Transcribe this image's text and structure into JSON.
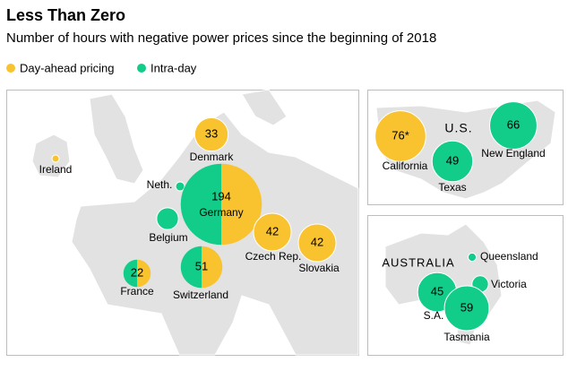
{
  "title": "Less Than Zero",
  "subtitle": "Number of hours with negative power prices since the beginning of 2018",
  "legend": [
    {
      "name": "Day-ahead pricing",
      "color": "#f9c32f"
    },
    {
      "name": "Intra-day",
      "color": "#12cc8a"
    }
  ],
  "region_labels": [
    "U.S.",
    "AUSTRALIA"
  ],
  "bubbles": [
    {
      "label": "Ireland",
      "value": 1.5,
      "colors": [
        "#f9c32f"
      ]
    },
    {
      "label": "Denmark",
      "value": 33,
      "colors": [
        "#f9c32f"
      ]
    },
    {
      "label": "Neth.",
      "value": 2.4,
      "colors": [
        "#12cc8a"
      ]
    },
    {
      "label": "Germany",
      "value": 194,
      "colors": [
        "#12cc8a",
        "#f9c32f"
      ]
    },
    {
      "label": "Belgium",
      "value": 14,
      "colors": [
        "#12cc8a"
      ]
    },
    {
      "label": "Czech Rep.",
      "value": 42,
      "colors": [
        "#f9c32f"
      ]
    },
    {
      "label": "Slovakia",
      "value": 42,
      "colors": [
        "#f9c32f"
      ]
    },
    {
      "label": "France",
      "value": 22,
      "colors": [
        "#12cc8a",
        "#f9c32f"
      ]
    },
    {
      "label": "Switzerland",
      "value": 51,
      "colors": [
        "#12cc8a",
        "#f9c32f"
      ]
    },
    {
      "label": "California",
      "value": 76,
      "value_label": "76*",
      "colors": [
        "#f9c32f"
      ]
    },
    {
      "label": "Texas",
      "value": 49,
      "colors": [
        "#12cc8a"
      ]
    },
    {
      "label": "New England",
      "value": 66,
      "colors": [
        "#12cc8a"
      ]
    },
    {
      "label": "Queensland",
      "value": 2,
      "colors": [
        "#12cc8a"
      ]
    },
    {
      "label": "Victoria",
      "value": 8,
      "colors": [
        "#12cc8a"
      ]
    },
    {
      "label": "S.A.",
      "value": 45,
      "colors": [
        "#12cc8a"
      ]
    },
    {
      "label": "Tasmania",
      "value": 59,
      "colors": [
        "#12cc8a"
      ]
    }
  ]
}
